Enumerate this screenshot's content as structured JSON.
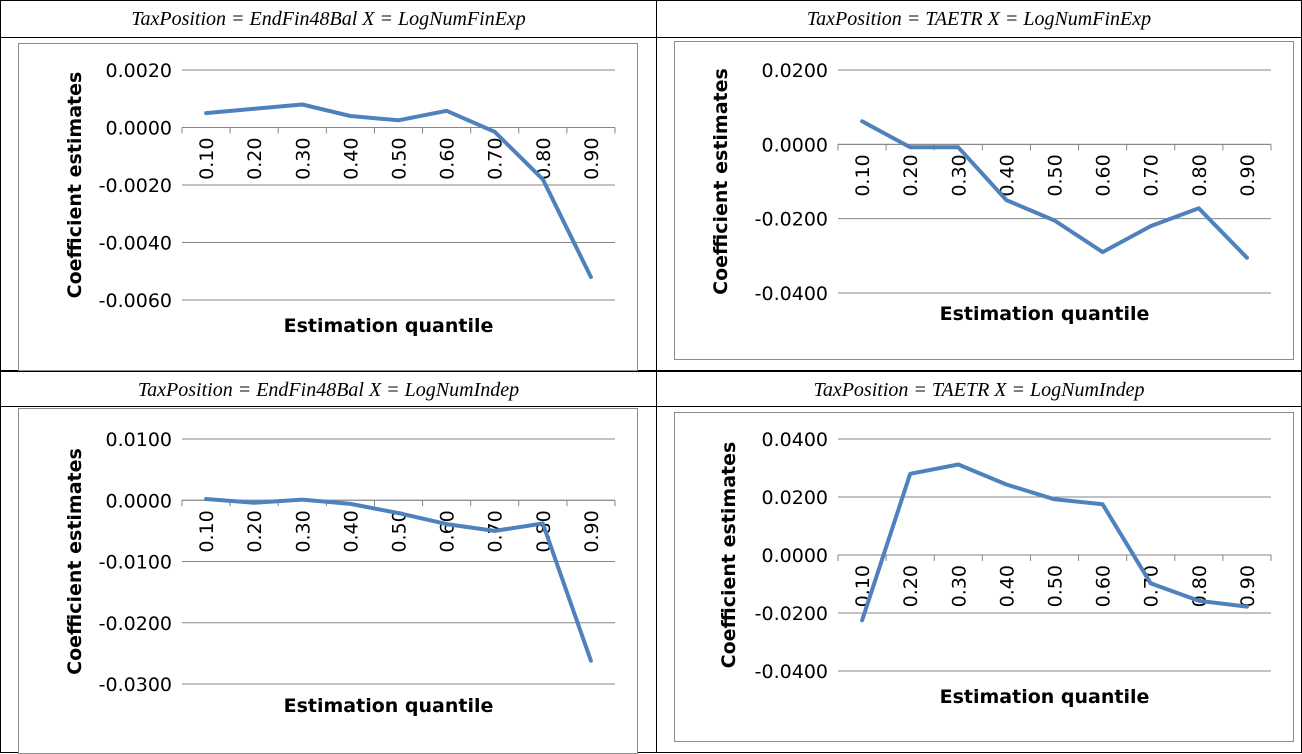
{
  "chart_data": [
    {
      "type": "line",
      "title": "TaxPosition = EndFin48Bal  X = LogNumFinExp",
      "xlabel": "Estimation quantile",
      "ylabel": "Coefficient estimates",
      "categories": [
        "0.10",
        "0.20",
        "0.30",
        "0.40",
        "0.50",
        "0.60",
        "0.70",
        "0.80",
        "0.90"
      ],
      "series": [
        {
          "values": [
            0.0005,
            0.00065,
            0.0008,
            0.0004,
            0.00025,
            0.00058,
            -0.00015,
            -0.0018,
            -0.0052
          ]
        }
      ],
      "yticks": [
        "0.0020",
        "0.0000",
        "-0.0020",
        "-0.0040",
        "-0.0060"
      ],
      "ylim": [
        -0.006,
        0.002
      ],
      "grid": true,
      "color": "#4f81bd"
    },
    {
      "type": "line",
      "title": "TaxPosition = TAETR  X = LogNumFinExp",
      "xlabel": "Estimation quantile",
      "ylabel": "Coefficient estimates",
      "categories": [
        "0.10",
        "0.20",
        "0.30",
        "0.40",
        "0.50",
        "0.60",
        "0.70",
        "0.80",
        "0.90"
      ],
      "series": [
        {
          "values": [
            0.0062,
            -0.0008,
            -0.0008,
            -0.015,
            -0.0205,
            -0.029,
            -0.022,
            -0.0172,
            -0.0305
          ]
        }
      ],
      "yticks": [
        "0.0200",
        "0.0000",
        "-0.0200",
        "-0.0400"
      ],
      "ylim": [
        -0.04,
        0.02
      ],
      "grid": true,
      "color": "#4f81bd"
    },
    {
      "type": "line",
      "title": "TaxPosition = EndFin48Bal  X = LogNumIndep",
      "xlabel": "Estimation quantile",
      "ylabel": "Coefficient estimates",
      "categories": [
        "0.10",
        "0.20",
        "0.30",
        "0.40",
        "0.50",
        "0.60",
        "0.70",
        "0.80",
        "0.90"
      ],
      "series": [
        {
          "values": [
            0.0002,
            -0.0004,
            0.0001,
            -0.0006,
            -0.0021,
            -0.0039,
            -0.005,
            -0.0038,
            -0.0262
          ]
        }
      ],
      "yticks": [
        "0.0100",
        "0.0000",
        "-0.0100",
        "-0.0200",
        "-0.0300"
      ],
      "ylim": [
        -0.03,
        0.01
      ],
      "grid": true,
      "color": "#4f81bd"
    },
    {
      "type": "line",
      "title": "TaxPosition = TAETR  X = LogNumIndep",
      "xlabel": "Estimation quantile",
      "ylabel": "Coefficient estimates",
      "categories": [
        "0.10",
        "0.20",
        "0.30",
        "0.40",
        "0.50",
        "0.60",
        "0.70",
        "0.80",
        "0.90"
      ],
      "series": [
        {
          "values": [
            -0.0225,
            0.028,
            0.0312,
            0.0243,
            0.0192,
            0.0175,
            -0.0098,
            -0.0158,
            -0.0178
          ]
        }
      ],
      "yticks": [
        "0.0400",
        "0.0200",
        "0.0000",
        "-0.0200",
        "-0.0400"
      ],
      "ylim": [
        -0.04,
        0.04
      ],
      "grid": true,
      "color": "#4f81bd"
    }
  ]
}
